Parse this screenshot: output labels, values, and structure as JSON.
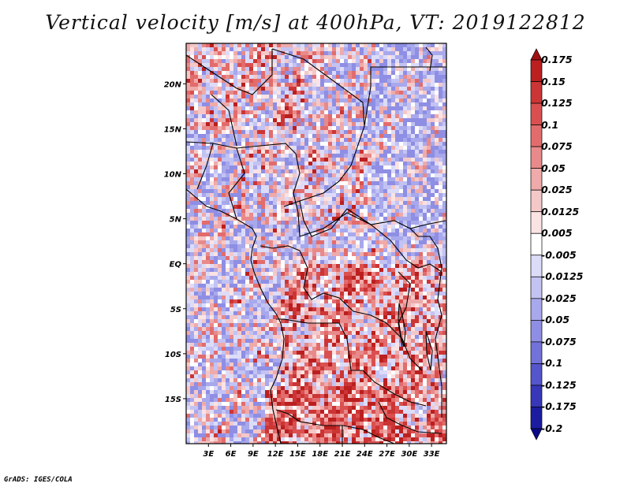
{
  "title": "Vertical velocity [m/s] at 400hPa, VT: 2019122812",
  "map": {
    "lat_ticks": [
      "20N",
      "15N",
      "10N",
      "5N",
      "EQ",
      "5S",
      "10S",
      "15S"
    ],
    "lon_ticks": [
      "3E",
      "6E",
      "9E",
      "12E",
      "15E",
      "18E",
      "21E",
      "24E",
      "27E",
      "30E",
      "33E"
    ],
    "lat_range": [
      -20,
      24.5
    ],
    "lon_range": [
      0,
      35
    ]
  },
  "colorbar": {
    "labels": [
      "0.175",
      "0.15",
      "0.125",
      "0.1",
      "0.075",
      "0.05",
      "0.025",
      "0.0125",
      "0.005",
      "-0.005",
      "-0.0125",
      "-0.025",
      "-0.05",
      "-0.075",
      "-0.1",
      "-0.125",
      "-0.175",
      "-0.2"
    ],
    "colors": [
      "#a01010",
      "#bb1f1f",
      "#cc3535",
      "#da5050",
      "#e26c6c",
      "#e88a8a",
      "#efaaaa",
      "#f5c8c8",
      "#fbe3e3",
      "#ffffff",
      "#dcdcf9",
      "#c3c3f3",
      "#a8a8ec",
      "#8e8ee4",
      "#7272d9",
      "#5555cc",
      "#3737b8",
      "#1c1ca0",
      "#0a0a88"
    ]
  },
  "credit": "GrADS: IGES/COLA"
}
